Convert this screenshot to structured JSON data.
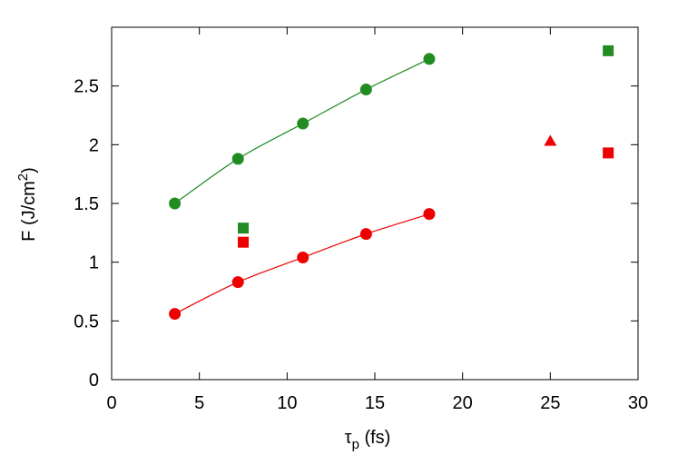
{
  "chart_data": {
    "type": "scatter",
    "xlabel": {
      "base": "τ",
      "sub": "p",
      "rest": " (fs)"
    },
    "ylabel": {
      "base": "F  (J/cm",
      "sup": "2",
      "rest": ")"
    },
    "xlim": [
      0,
      30
    ],
    "ylim": [
      0,
      3
    ],
    "xticks": [
      0,
      5,
      10,
      15,
      20,
      25,
      30
    ],
    "yticks": [
      0,
      0.5,
      1,
      1.5,
      2,
      2.5
    ],
    "series": [
      {
        "color": "#228b22",
        "marker": "circle",
        "line": true,
        "x": [
          3.6,
          7.2,
          10.9,
          14.5,
          18.1
        ],
        "values": [
          1.5,
          1.88,
          2.18,
          2.47,
          2.73
        ]
      },
      {
        "color": "#ee0000",
        "marker": "circle",
        "line": true,
        "x": [
          3.6,
          7.2,
          10.9,
          14.5,
          18.1
        ],
        "values": [
          0.56,
          0.83,
          1.04,
          1.24,
          1.41
        ]
      },
      {
        "color": "#228b22",
        "marker": "square",
        "line": false,
        "x": [
          7.5,
          28.3
        ],
        "values": [
          1.29,
          2.8
        ]
      },
      {
        "color": "#ee0000",
        "marker": "square",
        "line": false,
        "x": [
          7.5,
          28.3
        ],
        "values": [
          1.17,
          1.93
        ]
      },
      {
        "color": "#ee0000",
        "marker": "triangle",
        "line": false,
        "x": [
          25
        ],
        "values": [
          2.03
        ]
      }
    ]
  }
}
